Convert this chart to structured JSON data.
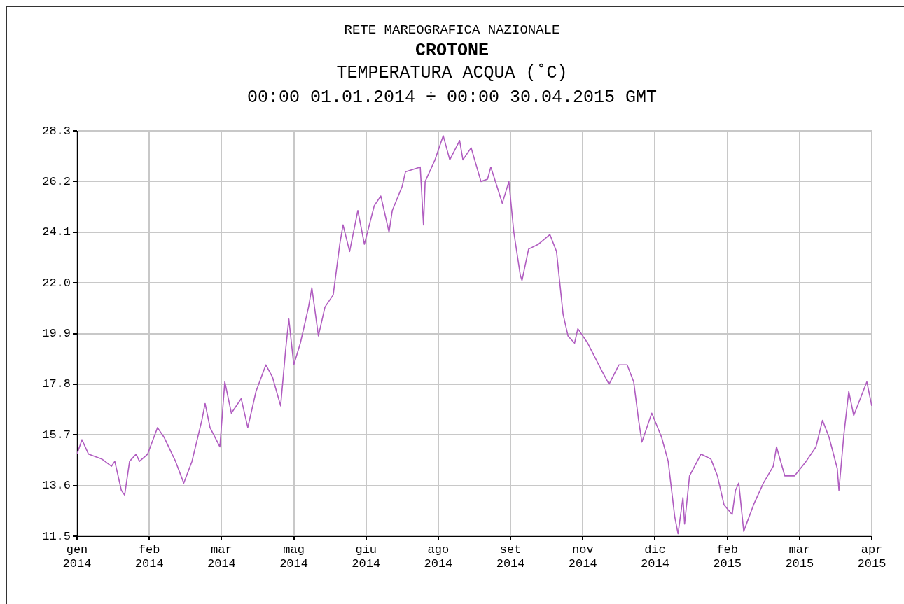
{
  "chart_data": {
    "type": "line",
    "title": "CROTONE",
    "subtitle": "00:00 01.01.2014 ÷ 00:00 30.04.2015 GMT",
    "ylabel": "TEMPERATURA ACQUA (˚C)",
    "annotations": [
      "RETE MAREOGRAFICA NAZIONALE"
    ],
    "x": [
      "2014-01-01",
      "2014-01-04",
      "2014-01-08",
      "2014-01-16",
      "2014-01-22",
      "2014-01-24",
      "2014-01-28",
      "2014-01-30",
      "2014-02-02",
      "2014-02-06",
      "2014-02-08",
      "2014-02-13",
      "2014-02-19",
      "2014-02-23",
      "2014-03-02",
      "2014-03-07",
      "2014-03-12",
      "2014-03-18",
      "2014-03-20",
      "2014-03-23",
      "2014-03-29",
      "2014-04-01",
      "2014-04-05",
      "2014-04-11",
      "2014-04-15",
      "2014-04-20",
      "2014-04-26",
      "2014-04-30",
      "2014-05-05",
      "2014-05-08",
      "2014-05-10",
      "2014-05-13",
      "2014-05-17",
      "2014-05-22",
      "2014-05-24",
      "2014-05-28",
      "2014-06-01",
      "2014-06-06",
      "2014-06-10",
      "2014-06-12",
      "2014-06-16",
      "2014-06-21",
      "2014-06-25",
      "2014-07-01",
      "2014-07-05",
      "2014-07-10",
      "2014-07-12",
      "2014-07-18",
      "2014-07-20",
      "2014-07-29",
      "2014-07-31",
      "2014-08-01",
      "2014-08-07",
      "2014-08-12",
      "2014-08-16",
      "2014-08-22",
      "2014-08-24",
      "2014-08-29",
      "2014-09-04",
      "2014-09-08",
      "2014-09-10",
      "2014-09-17",
      "2014-09-21",
      "2014-09-24",
      "2014-09-28",
      "2014-09-29",
      "2014-10-03",
      "2014-10-09",
      "2014-10-16",
      "2014-10-20",
      "2014-10-24",
      "2014-10-27",
      "2014-10-31",
      "2014-11-02",
      "2014-11-08",
      "2014-11-17",
      "2014-11-21",
      "2014-11-27",
      "2014-12-02",
      "2014-12-06",
      "2014-12-09",
      "2014-12-11",
      "2014-12-17",
      "2014-12-23",
      "2014-12-27",
      "2014-12-31",
      "2015-01-02",
      "2015-01-05",
      "2015-01-06",
      "2015-01-09",
      "2015-01-16",
      "2015-01-22",
      "2015-01-26",
      "2015-01-30",
      "2015-02-04",
      "2015-02-06",
      "2015-02-08",
      "2015-02-11",
      "2015-02-17",
      "2015-02-23",
      "2015-03-01",
      "2015-03-03",
      "2015-03-08",
      "2015-03-14",
      "2015-03-21",
      "2015-03-27",
      "2015-03-31",
      "2015-04-04",
      "2015-04-09",
      "2015-04-10",
      "2015-04-13",
      "2015-04-16",
      "2015-04-19",
      "2015-04-27",
      "2015-04-30"
    ],
    "series": [
      {
        "color": "#b05cc0",
        "values": [
          14.9,
          15.5,
          14.9,
          14.7,
          14.4,
          14.6,
          13.4,
          13.2,
          14.6,
          14.9,
          14.6,
          14.9,
          16.0,
          15.6,
          14.6,
          13.7,
          14.6,
          16.3,
          17.0,
          16.0,
          15.2,
          17.9,
          16.6,
          17.2,
          16.0,
          17.5,
          18.6,
          18.1,
          16.9,
          19.2,
          20.5,
          18.6,
          19.5,
          21.0,
          21.8,
          19.8,
          21.0,
          21.5,
          23.6,
          24.4,
          23.3,
          25.0,
          23.6,
          25.2,
          25.6,
          24.1,
          25.0,
          26.0,
          26.6,
          26.8,
          24.4,
          26.2,
          27.1,
          28.1,
          27.1,
          27.9,
          27.1,
          27.6,
          26.2,
          26.3,
          26.8,
          25.3,
          26.2,
          24.1,
          22.3,
          22.1,
          23.4,
          23.6,
          24.0,
          23.3,
          20.7,
          19.8,
          19.5,
          20.1,
          19.5,
          18.3,
          17.8,
          18.6,
          18.6,
          17.9,
          16.3,
          15.4,
          16.6,
          15.6,
          14.6,
          12.3,
          11.6,
          13.1,
          12.0,
          14.0,
          14.9,
          14.7,
          14.0,
          12.8,
          12.4,
          13.4,
          13.7,
          11.7,
          12.8,
          13.7,
          14.4,
          15.2,
          14.0,
          14.0,
          14.6,
          15.2,
          16.3,
          15.6,
          14.3,
          13.4,
          15.7,
          17.5,
          16.5,
          17.9,
          16.9
        ]
      }
    ],
    "xlim": [
      "2014-01-01",
      "2015-04-30"
    ],
    "xticks": [
      {
        "value": "2014-01-01",
        "label": "gen 2014"
      },
      {
        "value": "2014-02-14",
        "label": "feb 2014"
      },
      {
        "value": "2014-03-30",
        "label": "mar 2014"
      },
      {
        "value": "2014-05-13",
        "label": "mag 2014"
      },
      {
        "value": "2014-06-26",
        "label": "giu 2014"
      },
      {
        "value": "2014-08-09",
        "label": "ago 2014"
      },
      {
        "value": "2014-09-22",
        "label": "set 2014"
      },
      {
        "value": "2014-11-05",
        "label": "nov 2014"
      },
      {
        "value": "2014-12-19",
        "label": "dic 2014"
      },
      {
        "value": "2015-02-01",
        "label": "feb 2015"
      },
      {
        "value": "2015-03-17",
        "label": "mar 2015"
      },
      {
        "value": "2015-04-30",
        "label": "apr 2015"
      }
    ],
    "ylim": [
      11.5,
      28.3
    ],
    "yticks": [
      {
        "value": 11.5,
        "label": "11.5"
      },
      {
        "value": 13.6,
        "label": "13.6"
      },
      {
        "value": 15.7,
        "label": "15.7"
      },
      {
        "value": 17.8,
        "label": "17.8"
      },
      {
        "value": 19.9,
        "label": "19.9"
      },
      {
        "value": 22.0,
        "label": "22.0"
      },
      {
        "value": 24.1,
        "label": "24.1"
      },
      {
        "value": 26.2,
        "label": "26.2"
      },
      {
        "value": 28.3,
        "label": "28.3"
      }
    ],
    "grid": true,
    "legend": false,
    "marker": "none",
    "line_style": "solid"
  }
}
